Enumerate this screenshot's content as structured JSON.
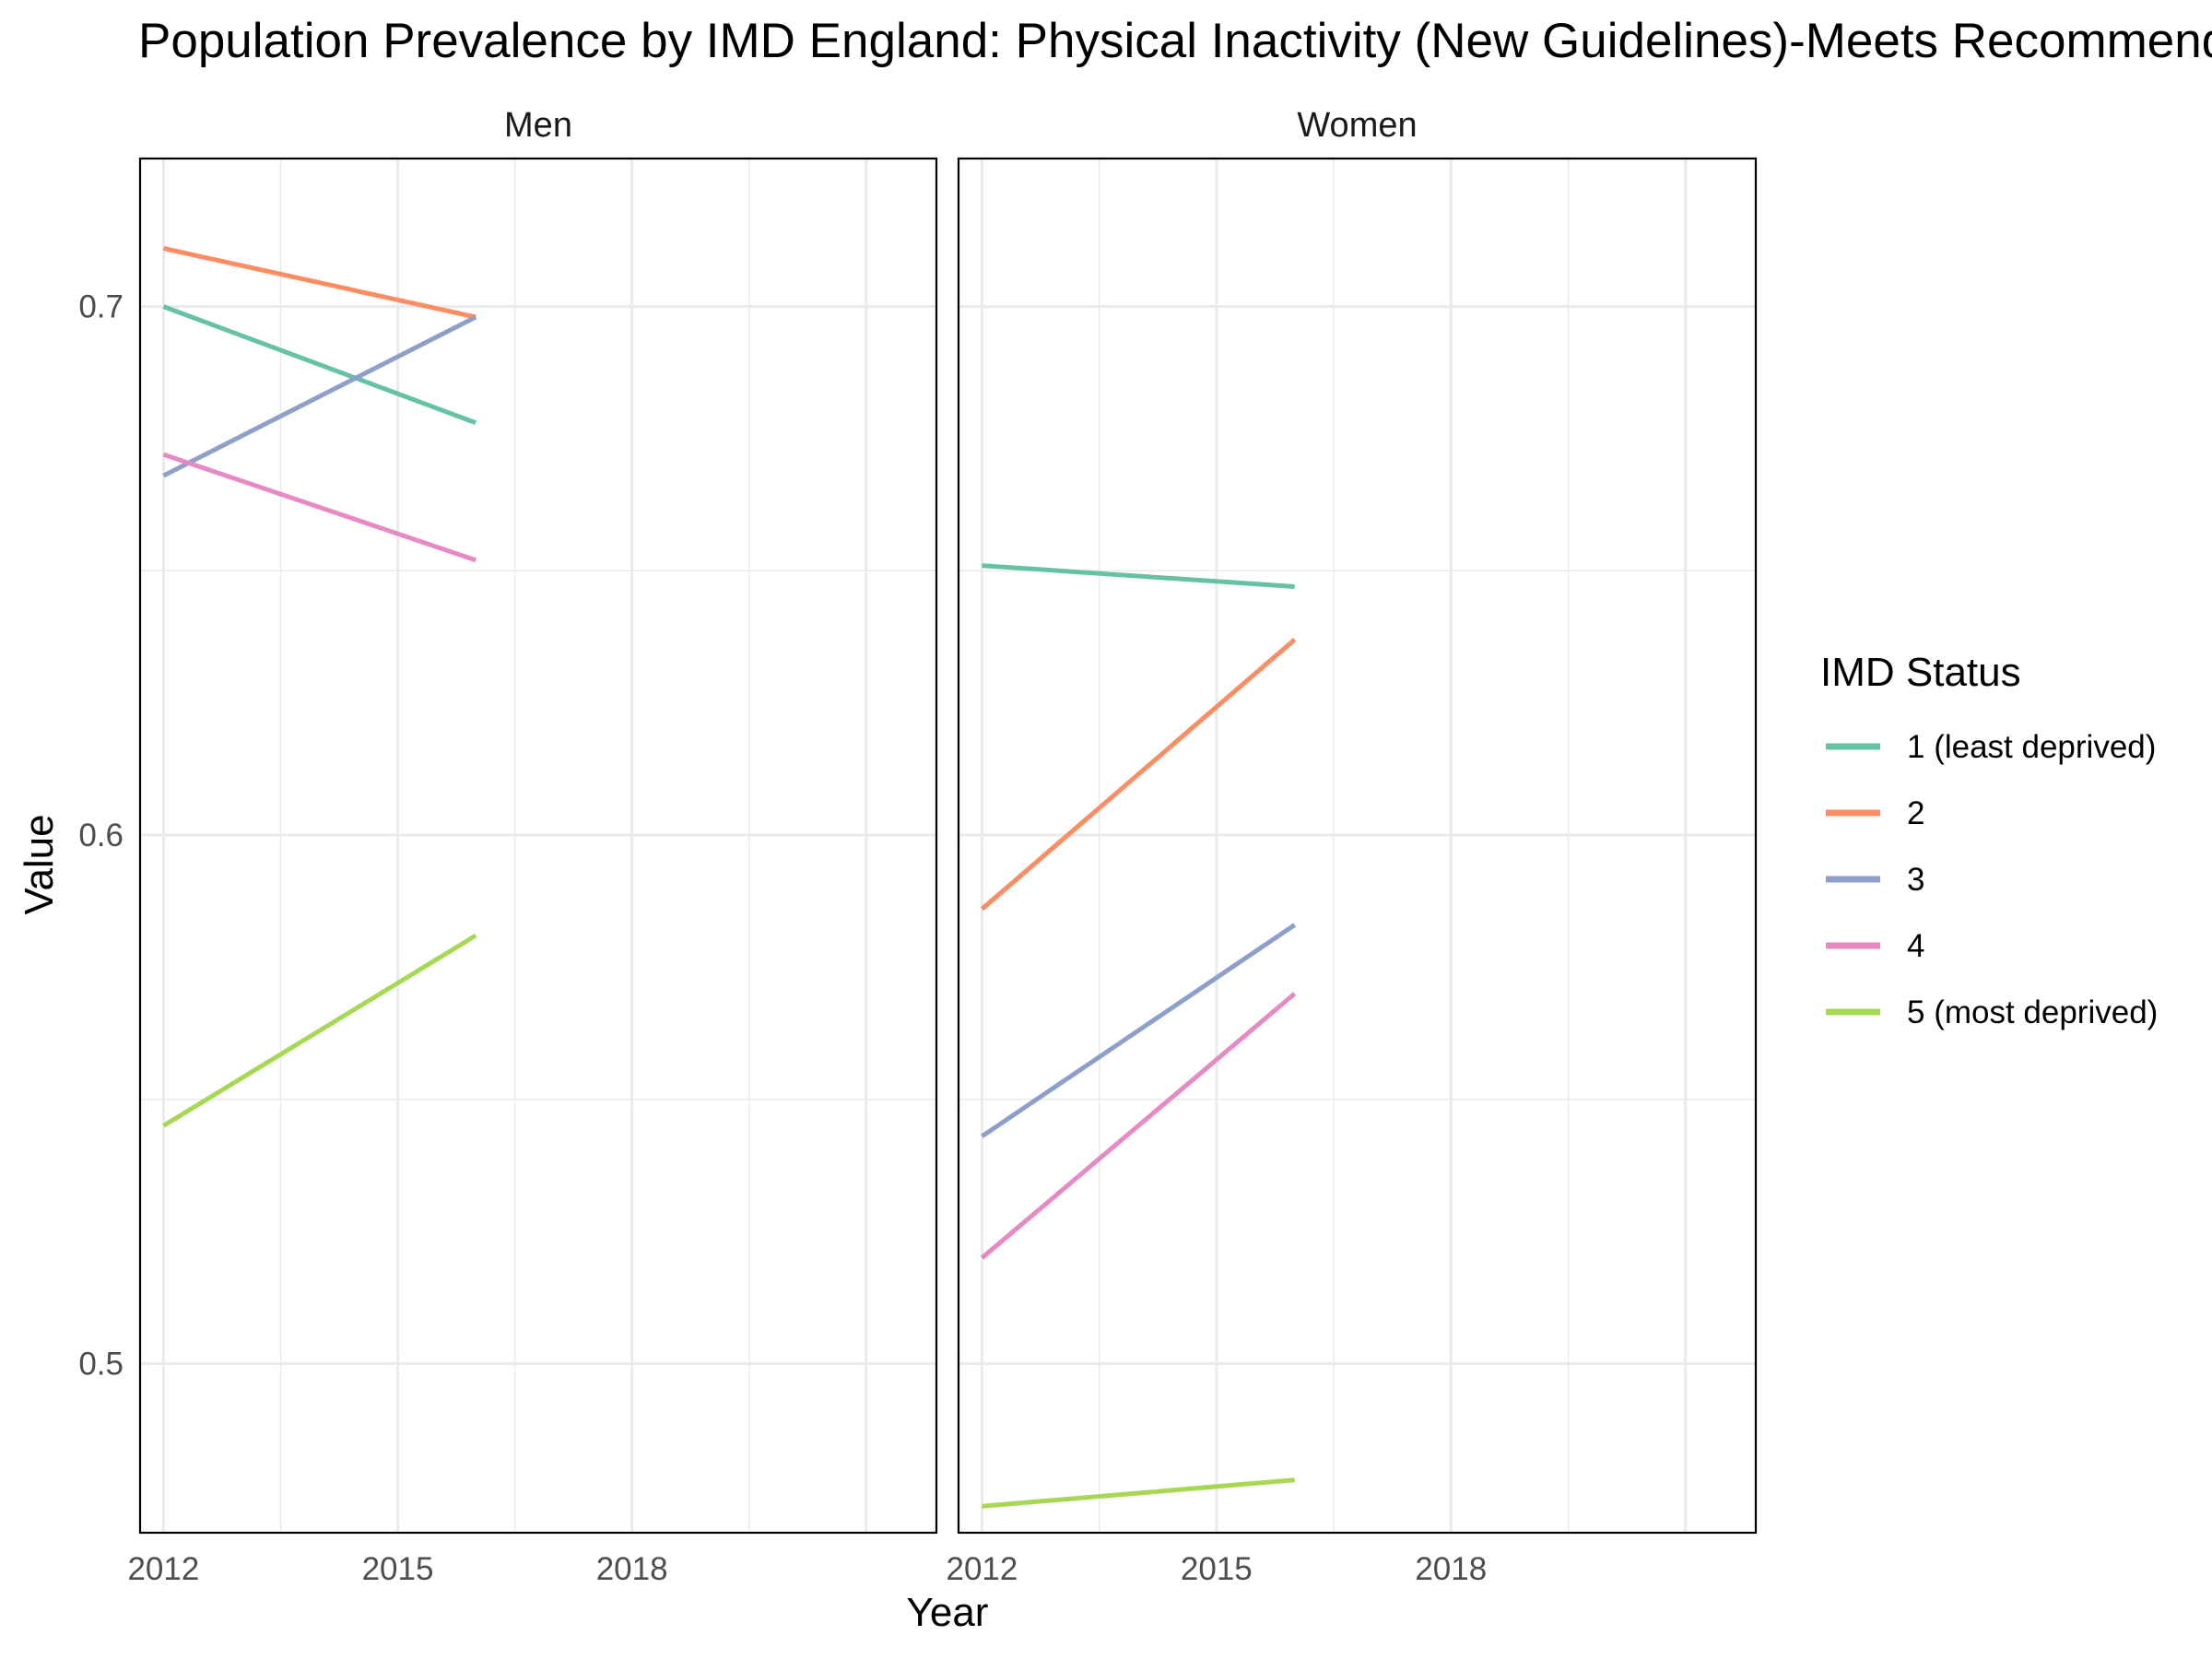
{
  "chart_data": {
    "type": "line",
    "title": "Population Prevalence by IMD England: Physical Inactivity (New Guidelines)-Meets Recommendations",
    "xlabel": "Year",
    "ylabel": "Value",
    "xlim": [
      2011.7,
      2021.9
    ],
    "ylim": [
      0.468,
      0.728
    ],
    "x_ticks": [
      2012,
      2015,
      2018
    ],
    "y_ticks": [
      0.5,
      0.6,
      0.7
    ],
    "x_tick_labels": [
      "2012",
      "2015",
      "2018"
    ],
    "y_tick_labels": [
      "0.5",
      "0.6",
      "0.7"
    ],
    "grid": true,
    "legend": {
      "title": "IMD Status",
      "placement": "right",
      "entries": [
        "1 (least deprived)",
        "2",
        "3",
        "4",
        "5 (most deprived)"
      ]
    },
    "colors": [
      "#66c2a5",
      "#fc8d62",
      "#8da0cb",
      "#e78ac3",
      "#a6d854"
    ],
    "x": [
      2012,
      2016
    ],
    "panels": [
      {
        "label": "Men",
        "series": [
          {
            "name": "1 (least deprived)",
            "values": [
              0.7,
              0.678
            ]
          },
          {
            "name": "2",
            "values": [
              0.711,
              0.698
            ]
          },
          {
            "name": "3",
            "values": [
              0.668,
              0.698
            ]
          },
          {
            "name": "4",
            "values": [
              0.672,
              0.652
            ]
          },
          {
            "name": "5 (most deprived)",
            "values": [
              0.545,
              0.581
            ]
          }
        ]
      },
      {
        "label": "Women",
        "series": [
          {
            "name": "1 (least deprived)",
            "values": [
              0.651,
              0.647
            ]
          },
          {
            "name": "2",
            "values": [
              0.586,
              0.637
            ]
          },
          {
            "name": "3",
            "values": [
              0.543,
              0.583
            ]
          },
          {
            "name": "4",
            "values": [
              0.52,
              0.57
            ]
          },
          {
            "name": "5 (most deprived)",
            "values": [
              0.473,
              0.478
            ]
          }
        ]
      }
    ]
  }
}
